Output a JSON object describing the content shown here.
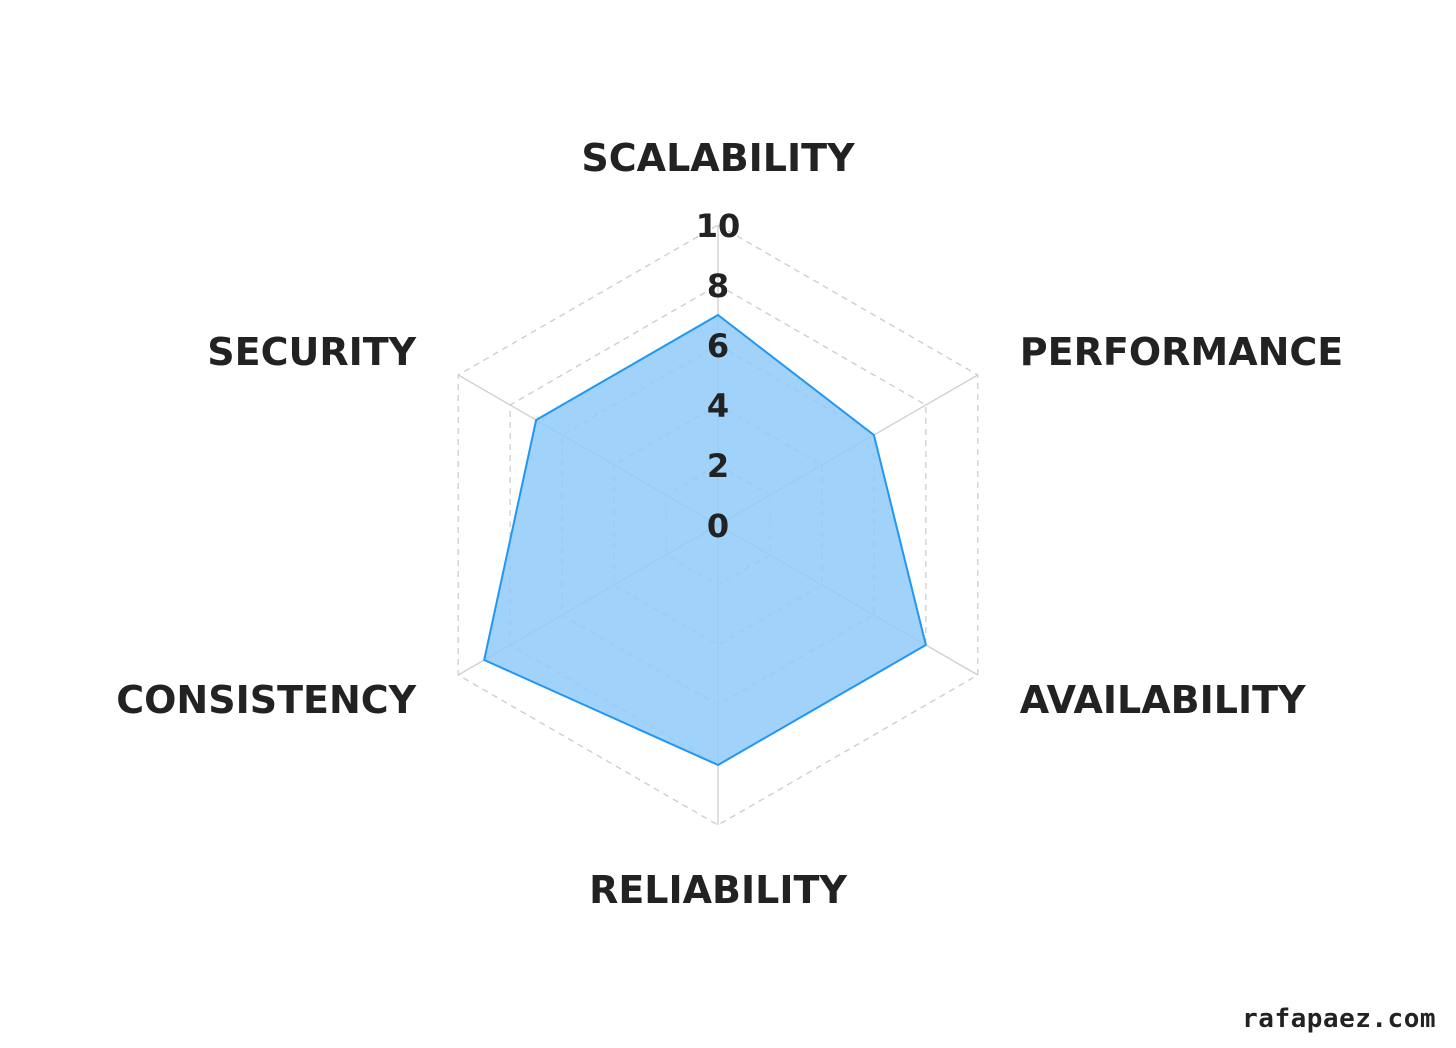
{
  "chart_data": {
    "type": "radar",
    "title": "",
    "axes": [
      "SCALABILITY",
      "PERFORMANCE",
      "AVAILABILITY",
      "RELIABILITY",
      "CONSISTENCY",
      "SECURITY"
    ],
    "series": [
      {
        "values": [
          7,
          6,
          8,
          8,
          9,
          7
        ],
        "color": "#2196F3",
        "fill": "#90CAF9"
      }
    ],
    "rlim": [
      0,
      10
    ],
    "ticks": [
      "0",
      "2",
      "4",
      "6",
      "8",
      "10"
    ],
    "tick_values": [
      0,
      2,
      4,
      6,
      8,
      10
    ],
    "grid": true
  },
  "footer": {
    "watermark": "rafapaez.com"
  }
}
